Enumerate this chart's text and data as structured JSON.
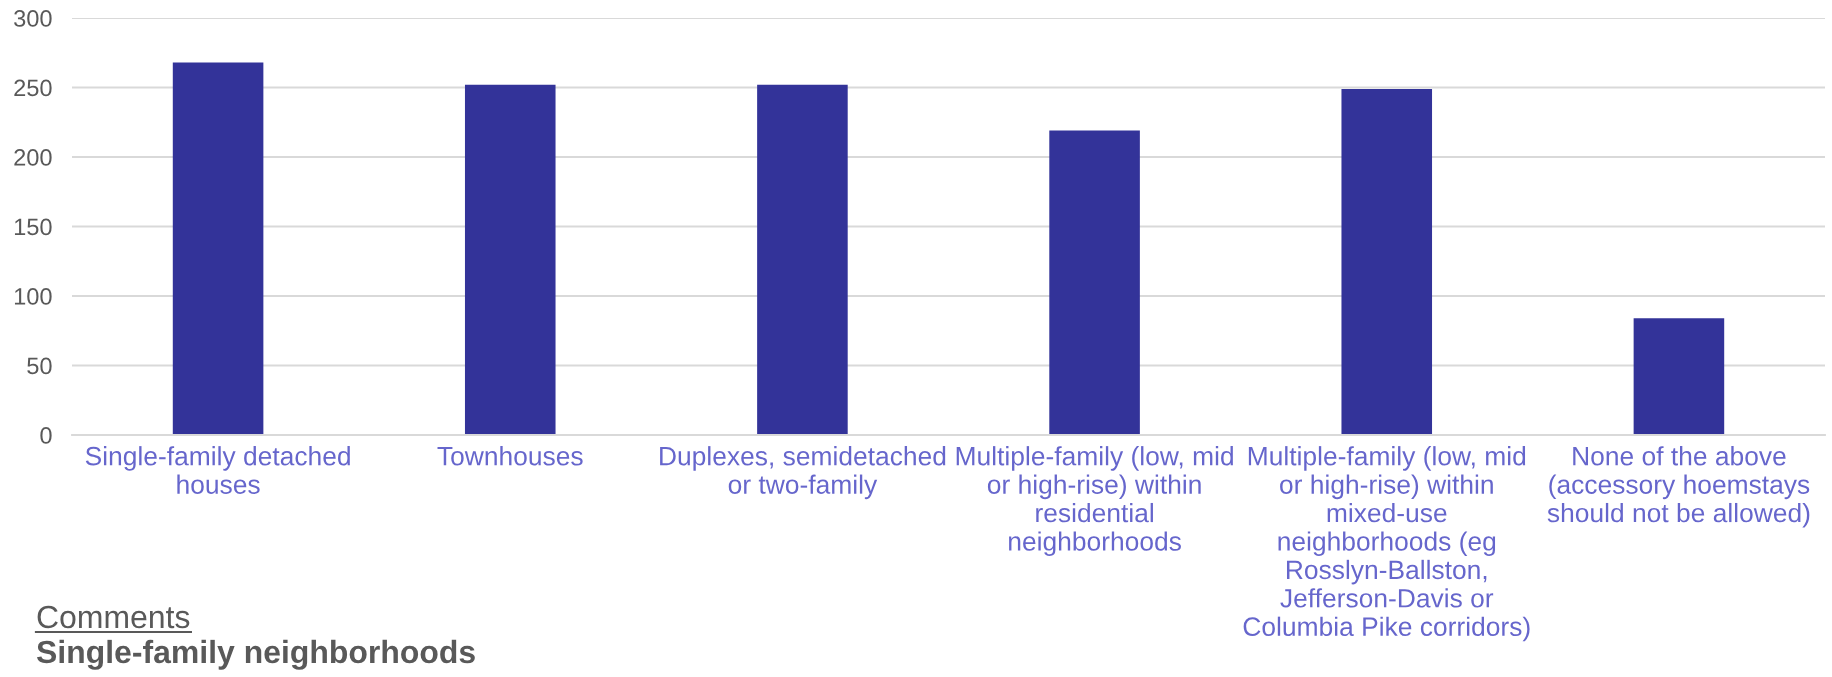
{
  "chart_data": {
    "type": "bar",
    "categories": [
      "Single-family detached houses",
      "Townhouses",
      "Duplexes, semidetached or two-family",
      "Multiple-family (low, mid or high-rise) within residential neighborhoods",
      "Multiple-family (low, mid or high-rise) within mixed-use neighborhoods (eg Rosslyn-Ballston, Jefferson-Davis or Columbia Pike corridors)",
      "None of the above (accessory hoemstays should not be allowed)"
    ],
    "values": [
      268,
      252,
      252,
      219,
      249,
      84
    ],
    "color": "#333399",
    "ylim": [
      0,
      300
    ],
    "yticks": [
      0,
      50,
      100,
      150,
      200,
      250,
      300
    ],
    "grid": "y",
    "annotations": [
      "Comments",
      "Single-family neighborhoods"
    ]
  }
}
